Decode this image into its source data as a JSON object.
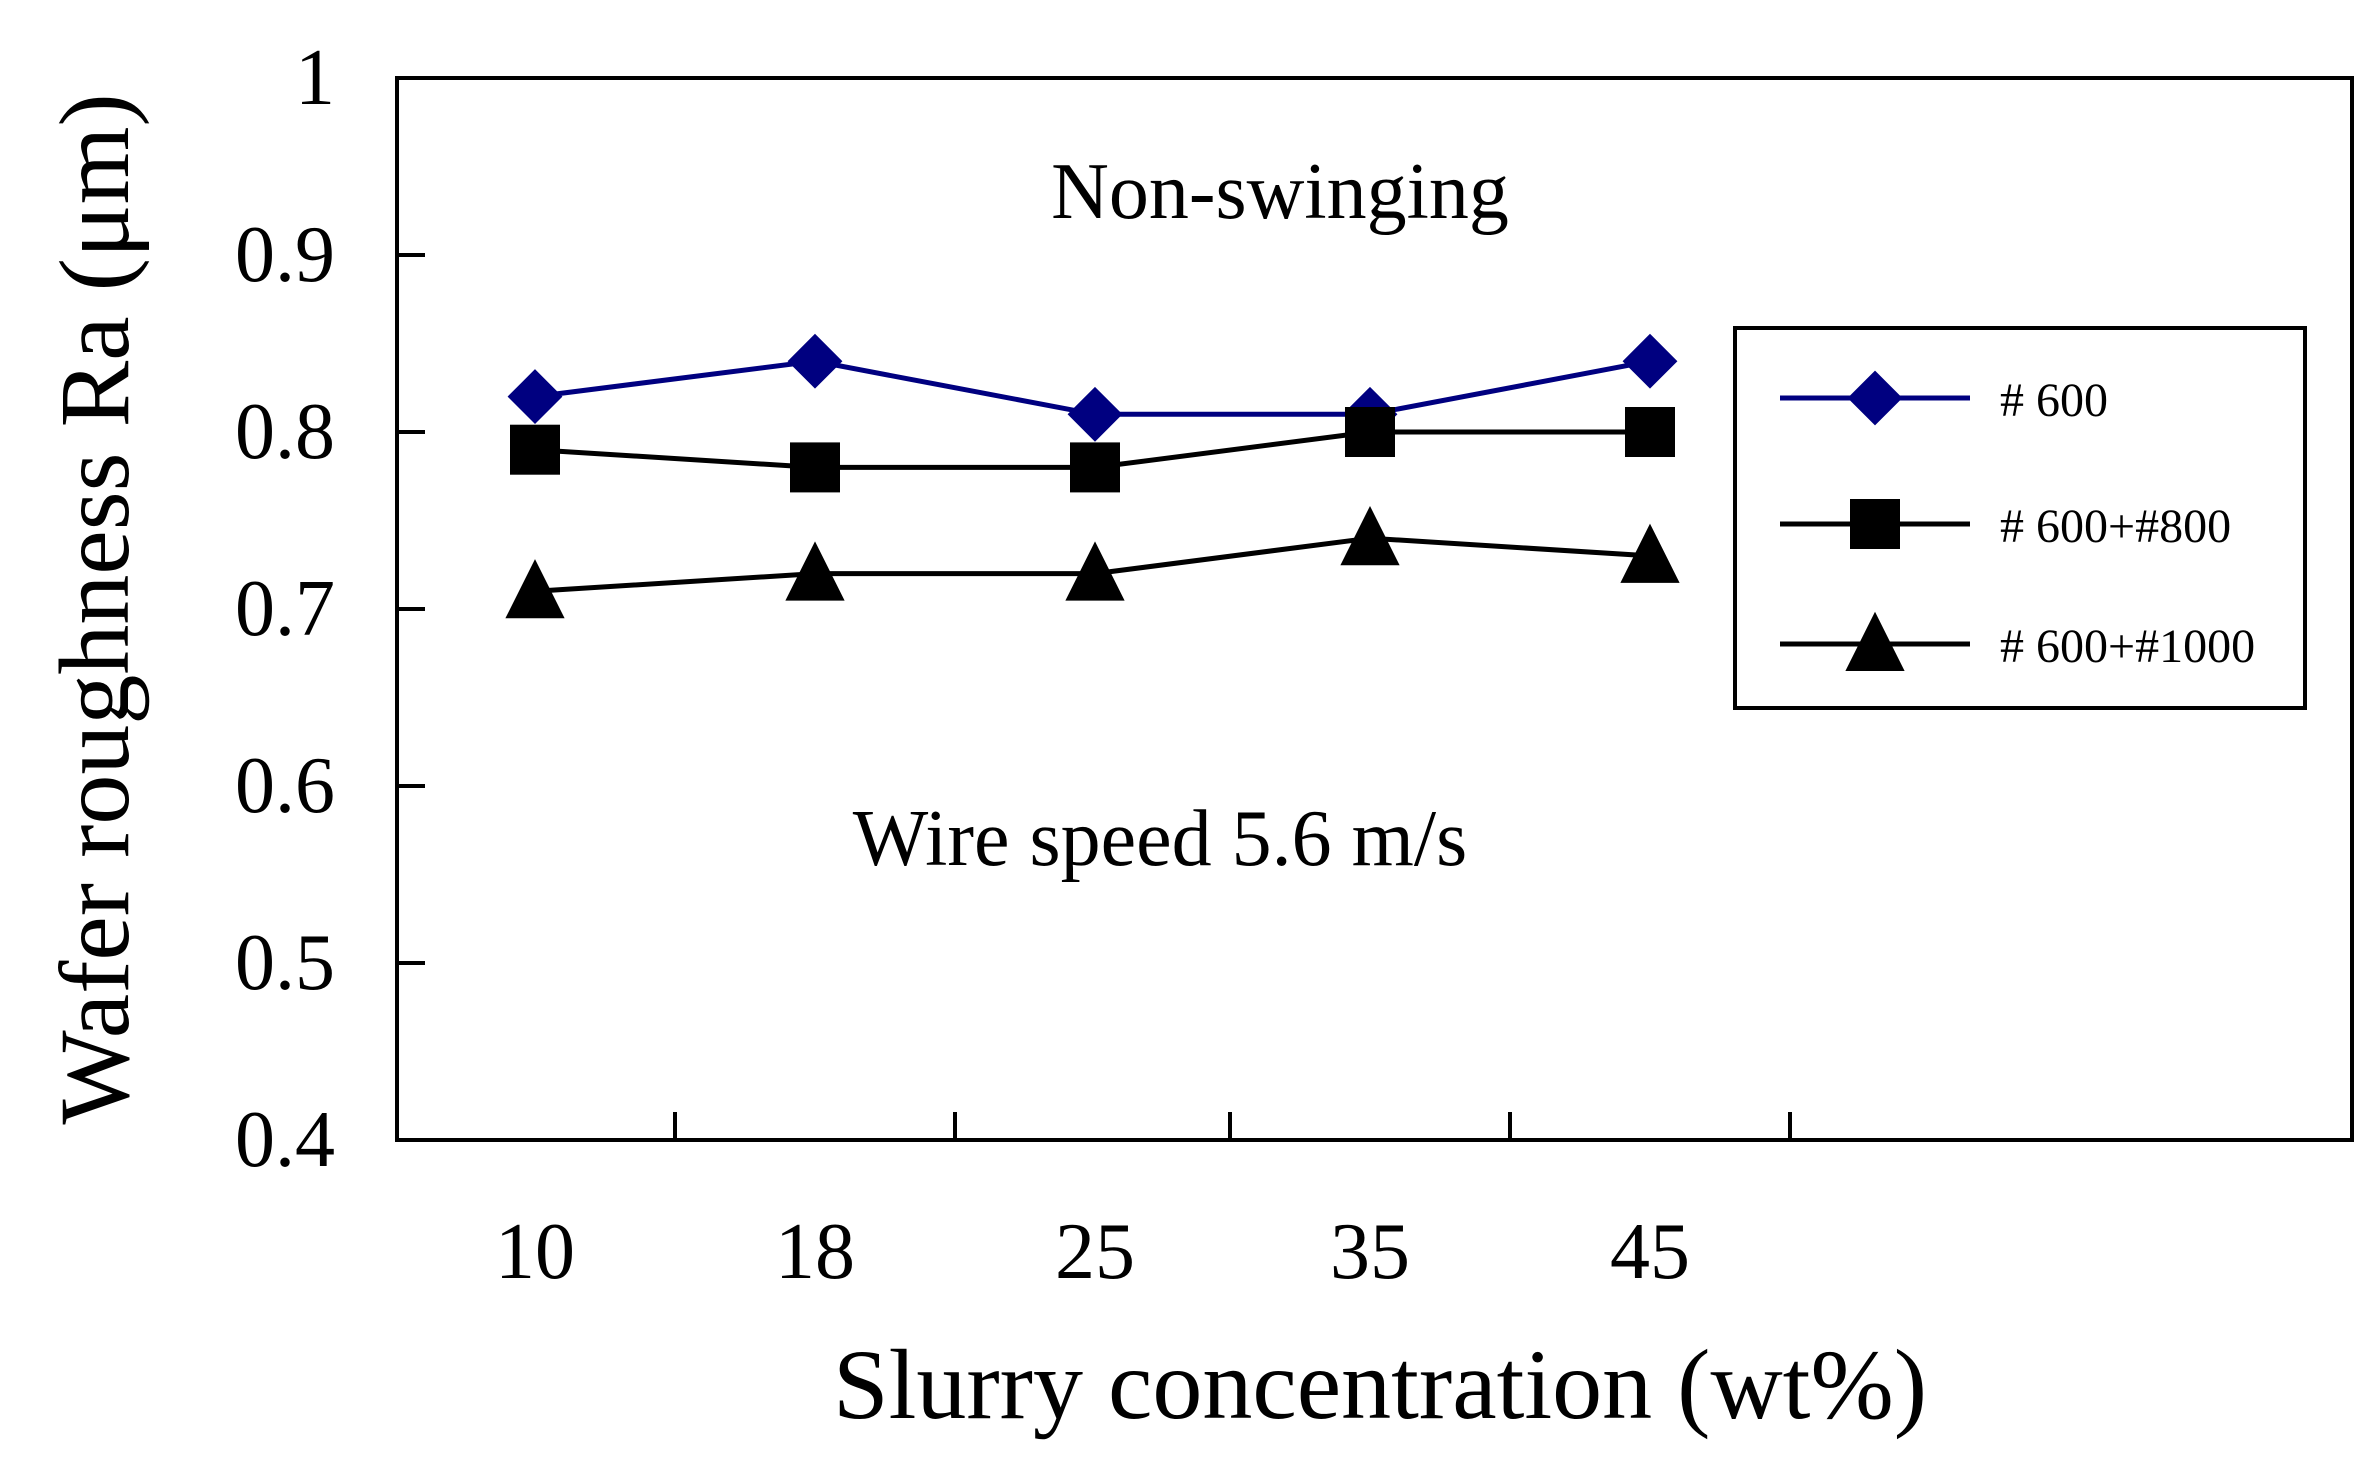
{
  "chart_data": {
    "type": "line",
    "title": "",
    "xlabel": "Slurry concentration (wt%)",
    "ylabel": "Wafer roughness Ra (μm)",
    "categories": [
      "10",
      "18",
      "25",
      "35",
      "45"
    ],
    "ylim": [
      0.4,
      1.0
    ],
    "yticks": [
      "0.4",
      "0.5",
      "0.6",
      "0.7",
      "0.8",
      "0.9",
      "1"
    ],
    "grid": false,
    "legend_position": "top-right",
    "annotations": [
      "Non-swinging",
      "Wire speed 5.6 m/s"
    ],
    "series": [
      {
        "name": "# 600",
        "marker": "diamond",
        "color": "#000080",
        "values": [
          0.82,
          0.84,
          0.81,
          0.81,
          0.84
        ]
      },
      {
        "name": "# 600+#800",
        "marker": "square",
        "color": "#000000",
        "values": [
          0.79,
          0.78,
          0.78,
          0.8,
          0.8
        ]
      },
      {
        "name": "# 600+#1000",
        "marker": "triangle",
        "color": "#000000",
        "values": [
          0.71,
          0.72,
          0.72,
          0.74,
          0.73
        ]
      }
    ]
  }
}
